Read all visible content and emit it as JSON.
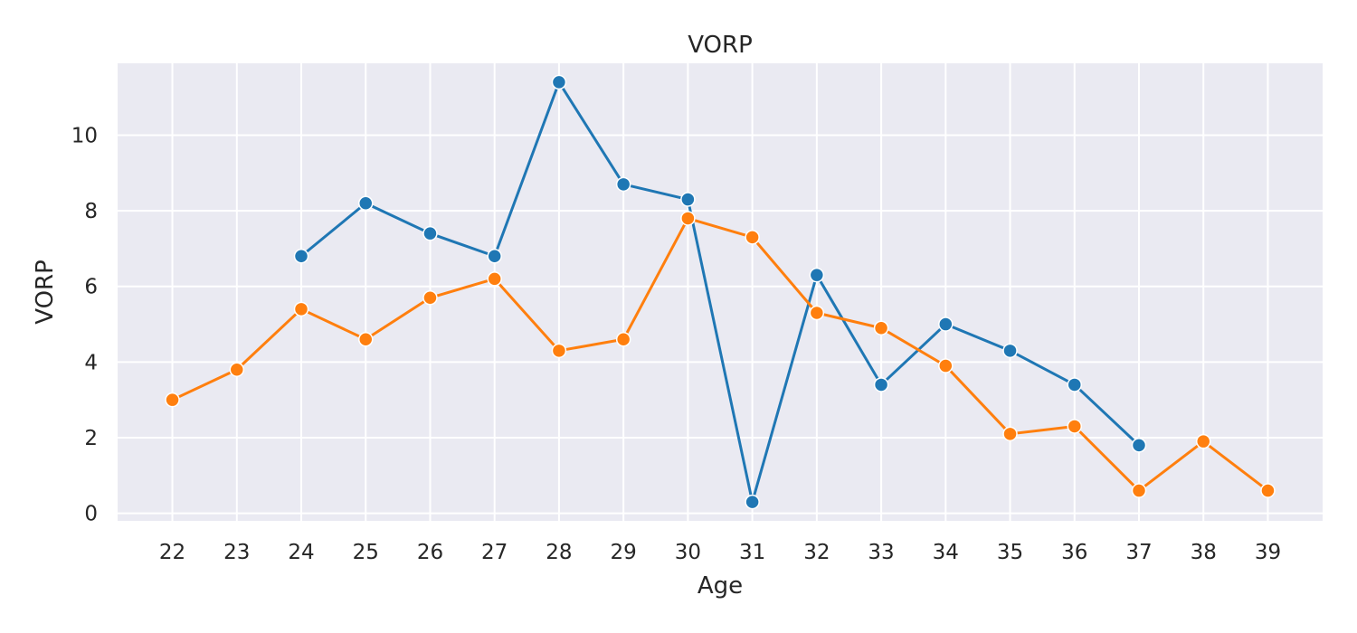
{
  "chart_data": {
    "type": "line",
    "title": "VORP",
    "xlabel": "Age",
    "ylabel": "VORP",
    "x": [
      22,
      23,
      24,
      25,
      26,
      27,
      28,
      29,
      30,
      31,
      32,
      33,
      34,
      35,
      36,
      37,
      38,
      39
    ],
    "x_ticks": [
      "22",
      "23",
      "24",
      "25",
      "26",
      "27",
      "28",
      "29",
      "30",
      "31",
      "32",
      "33",
      "34",
      "35",
      "36",
      "37",
      "38",
      "39"
    ],
    "y_ticks": [
      0,
      2,
      4,
      6,
      8,
      10
    ],
    "xlim": [
      21.15,
      39.85
    ],
    "ylim": [
      -0.2,
      11.9
    ],
    "grid": true,
    "legend": "none",
    "series": [
      {
        "color": "#1f77b4",
        "points": [
          [
            24,
            6.8
          ],
          [
            25,
            8.2
          ],
          [
            26,
            7.4
          ],
          [
            27,
            6.8
          ],
          [
            28,
            11.4
          ],
          [
            29,
            8.7
          ],
          [
            30,
            8.3
          ],
          [
            31,
            0.3
          ],
          [
            32,
            6.3
          ],
          [
            33,
            3.4
          ],
          [
            34,
            5.0
          ],
          [
            35,
            4.3
          ],
          [
            36,
            3.4
          ],
          [
            37,
            1.8
          ]
        ]
      },
      {
        "color": "#ff7f0e",
        "points": [
          [
            22,
            3.0
          ],
          [
            23,
            3.8
          ],
          [
            24,
            5.4
          ],
          [
            25,
            4.6
          ],
          [
            26,
            5.7
          ],
          [
            27,
            6.2
          ],
          [
            28,
            4.3
          ],
          [
            29,
            4.6
          ],
          [
            30,
            7.8
          ],
          [
            31,
            7.3
          ],
          [
            32,
            5.3
          ],
          [
            33,
            4.9
          ],
          [
            34,
            3.9
          ],
          [
            35,
            2.1
          ],
          [
            36,
            2.3
          ],
          [
            37,
            0.6
          ],
          [
            38,
            1.9
          ],
          [
            39,
            0.6
          ]
        ]
      }
    ]
  }
}
